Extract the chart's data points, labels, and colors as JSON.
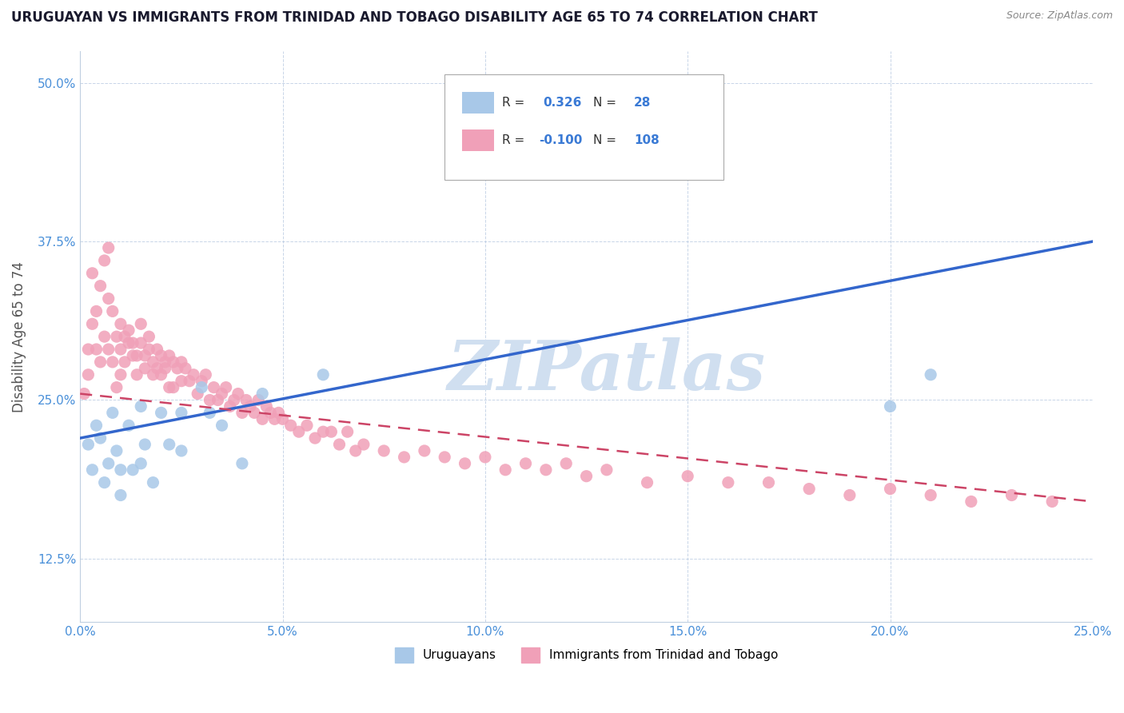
{
  "title": "URUGUAYAN VS IMMIGRANTS FROM TRINIDAD AND TOBAGO DISABILITY AGE 65 TO 74 CORRELATION CHART",
  "source": "Source: ZipAtlas.com",
  "ylabel": "Disability Age 65 to 74",
  "xlim": [
    0.0,
    0.25
  ],
  "ylim": [
    0.075,
    0.525
  ],
  "xticks": [
    0.0,
    0.05,
    0.1,
    0.15,
    0.2,
    0.25
  ],
  "xticklabels": [
    "0.0%",
    "5.0%",
    "10.0%",
    "15.0%",
    "20.0%",
    "25.0%"
  ],
  "yticks": [
    0.125,
    0.25,
    0.375,
    0.5
  ],
  "yticklabels": [
    "12.5%",
    "25.0%",
    "37.5%",
    "50.0%"
  ],
  "legend_blue_r_val": "0.326",
  "legend_blue_n_val": "28",
  "legend_pink_r_val": "-0.100",
  "legend_pink_n_val": "108",
  "blue_color": "#a8c8e8",
  "pink_color": "#f0a0b8",
  "trend_blue_color": "#3366cc",
  "trend_pink_color": "#cc4466",
  "watermark": "ZIPatlas",
  "watermark_color": "#d0dff0",
  "legend_label_blue": "Uruguayans",
  "legend_label_pink": "Immigrants from Trinidad and Tobago",
  "blue_x": [
    0.002,
    0.003,
    0.004,
    0.005,
    0.006,
    0.007,
    0.008,
    0.009,
    0.01,
    0.01,
    0.012,
    0.013,
    0.015,
    0.015,
    0.016,
    0.018,
    0.02,
    0.022,
    0.025,
    0.025,
    0.03,
    0.032,
    0.035,
    0.04,
    0.045,
    0.06,
    0.2,
    0.21
  ],
  "blue_y": [
    0.215,
    0.195,
    0.23,
    0.22,
    0.185,
    0.2,
    0.24,
    0.21,
    0.195,
    0.175,
    0.23,
    0.195,
    0.245,
    0.2,
    0.215,
    0.185,
    0.24,
    0.215,
    0.24,
    0.21,
    0.26,
    0.24,
    0.23,
    0.2,
    0.255,
    0.27,
    0.245,
    0.27
  ],
  "pink_x": [
    0.001,
    0.002,
    0.002,
    0.003,
    0.003,
    0.004,
    0.004,
    0.005,
    0.005,
    0.006,
    0.006,
    0.007,
    0.007,
    0.007,
    0.008,
    0.008,
    0.009,
    0.009,
    0.01,
    0.01,
    0.01,
    0.011,
    0.011,
    0.012,
    0.012,
    0.013,
    0.013,
    0.014,
    0.014,
    0.015,
    0.015,
    0.016,
    0.016,
    0.017,
    0.017,
    0.018,
    0.018,
    0.019,
    0.019,
    0.02,
    0.02,
    0.021,
    0.021,
    0.022,
    0.022,
    0.023,
    0.023,
    0.024,
    0.025,
    0.025,
    0.026,
    0.027,
    0.028,
    0.029,
    0.03,
    0.031,
    0.032,
    0.033,
    0.034,
    0.035,
    0.036,
    0.037,
    0.038,
    0.039,
    0.04,
    0.041,
    0.042,
    0.043,
    0.044,
    0.045,
    0.046,
    0.047,
    0.048,
    0.049,
    0.05,
    0.052,
    0.054,
    0.056,
    0.058,
    0.06,
    0.062,
    0.064,
    0.066,
    0.068,
    0.07,
    0.075,
    0.08,
    0.085,
    0.09,
    0.095,
    0.1,
    0.105,
    0.11,
    0.115,
    0.12,
    0.125,
    0.13,
    0.14,
    0.15,
    0.16,
    0.17,
    0.18,
    0.19,
    0.2,
    0.21,
    0.22,
    0.23,
    0.24
  ],
  "pink_y": [
    0.255,
    0.27,
    0.29,
    0.31,
    0.35,
    0.29,
    0.32,
    0.28,
    0.34,
    0.36,
    0.3,
    0.33,
    0.29,
    0.37,
    0.28,
    0.32,
    0.26,
    0.3,
    0.31,
    0.29,
    0.27,
    0.28,
    0.3,
    0.295,
    0.305,
    0.285,
    0.295,
    0.27,
    0.285,
    0.295,
    0.31,
    0.285,
    0.275,
    0.29,
    0.3,
    0.28,
    0.27,
    0.29,
    0.275,
    0.285,
    0.27,
    0.28,
    0.275,
    0.26,
    0.285,
    0.28,
    0.26,
    0.275,
    0.28,
    0.265,
    0.275,
    0.265,
    0.27,
    0.255,
    0.265,
    0.27,
    0.25,
    0.26,
    0.25,
    0.255,
    0.26,
    0.245,
    0.25,
    0.255,
    0.24,
    0.25,
    0.245,
    0.24,
    0.25,
    0.235,
    0.245,
    0.24,
    0.235,
    0.24,
    0.235,
    0.23,
    0.225,
    0.23,
    0.22,
    0.225,
    0.225,
    0.215,
    0.225,
    0.21,
    0.215,
    0.21,
    0.205,
    0.21,
    0.205,
    0.2,
    0.205,
    0.195,
    0.2,
    0.195,
    0.2,
    0.19,
    0.195,
    0.185,
    0.19,
    0.185,
    0.185,
    0.18,
    0.175,
    0.18,
    0.175,
    0.17,
    0.175,
    0.17
  ],
  "blue_trend_x": [
    0.0,
    0.25
  ],
  "blue_trend_y": [
    0.22,
    0.375
  ],
  "pink_trend_x": [
    0.0,
    0.25
  ],
  "pink_trend_y": [
    0.255,
    0.17
  ],
  "figsize": [
    14.06,
    8.92
  ],
  "dpi": 100
}
